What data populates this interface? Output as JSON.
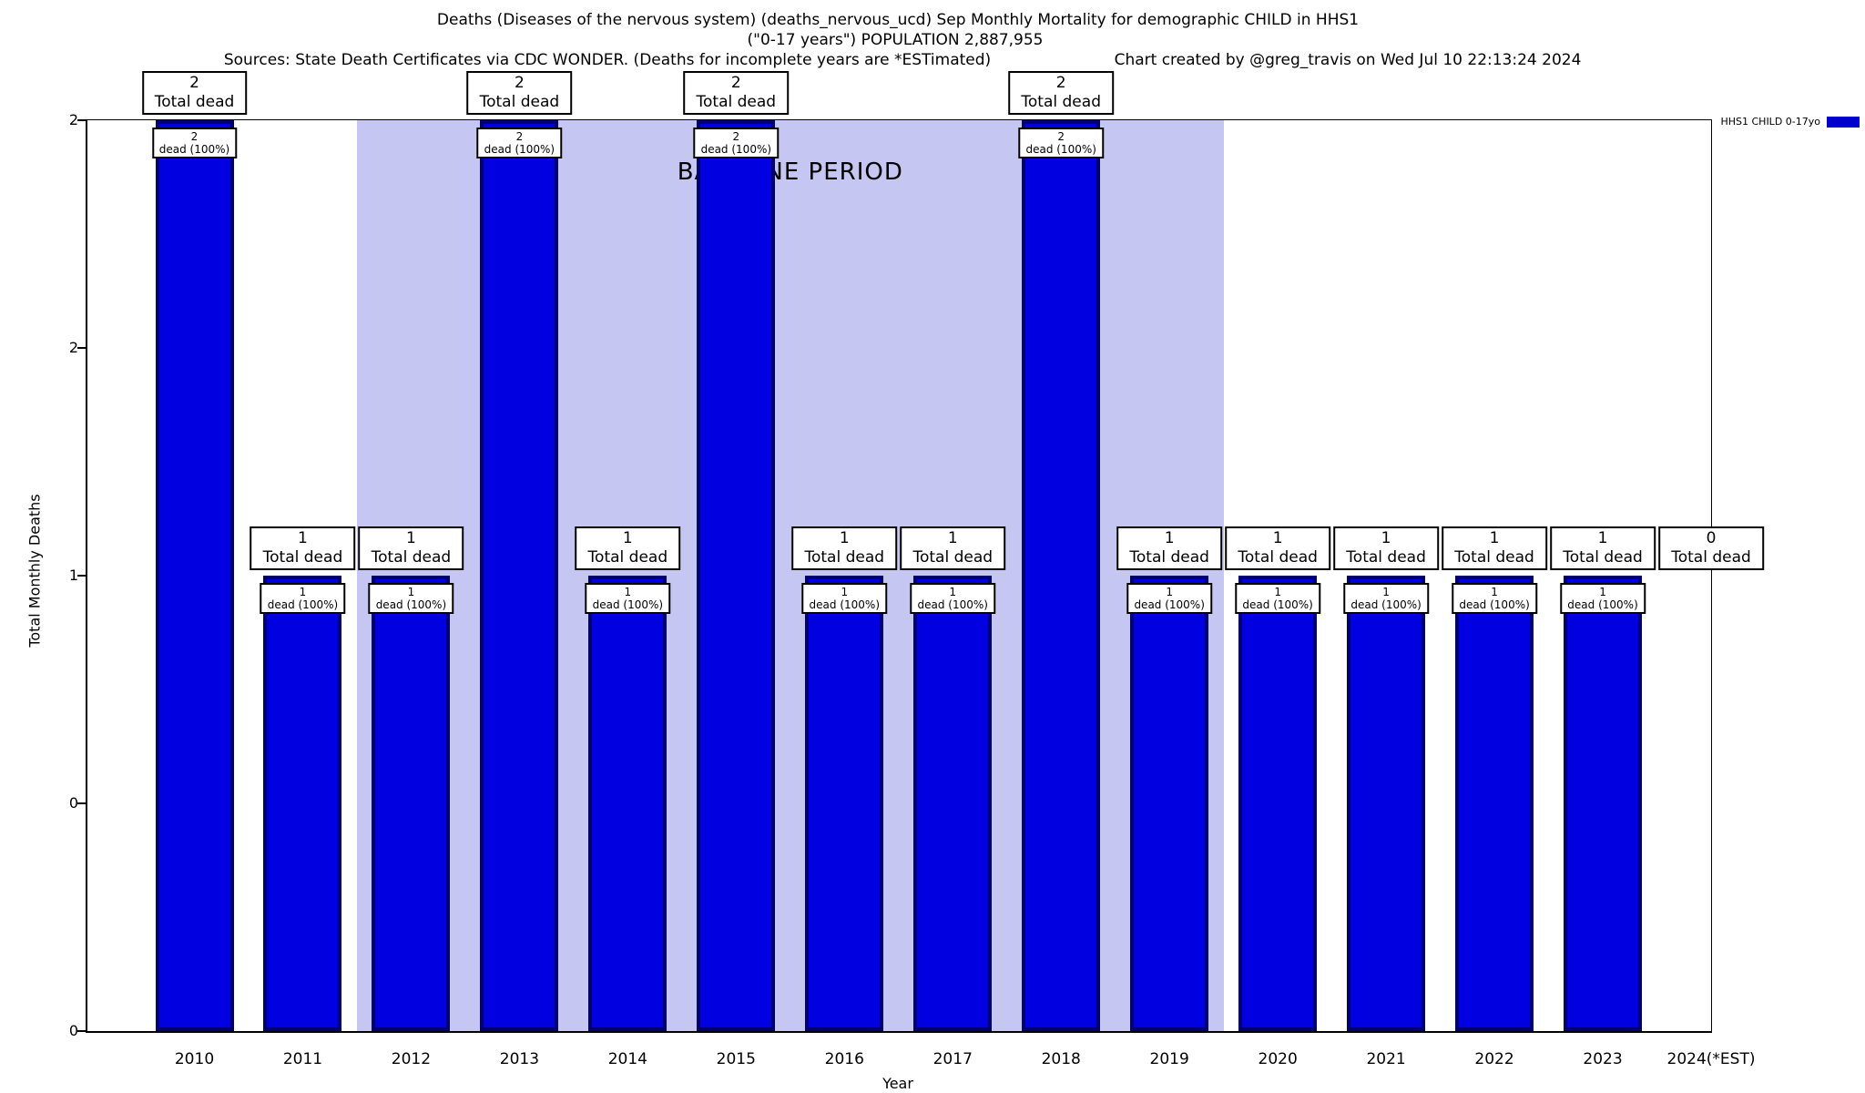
{
  "header": {
    "line1": "Deaths (Diseases of the nervous system) (deaths_nervous_ucd) Sep Monthly Mortality for demographic CHILD in HHS1",
    "line2": "(\"0-17 years\") POPULATION 2,887,955",
    "sources": "Sources: State Death Certificates via CDC WONDER. (Deaths for incomplete years are *ESTimated)",
    "credit": "Chart created by @greg_travis on Wed Jul 10 22:13:24 2024"
  },
  "colors": {
    "bar_fill": "#0000e0",
    "bar_border": "#00006e",
    "band": "#c6c6f2",
    "legend_swatch": "#0000cc"
  },
  "chart_data": {
    "type": "bar",
    "categories": [
      "2010",
      "2011",
      "2012",
      "2013",
      "2014",
      "2015",
      "2016",
      "2017",
      "2018",
      "2019",
      "2020",
      "2021",
      "2022",
      "2023",
      "2024(*EST)"
    ],
    "values": [
      2,
      1,
      1,
      2,
      1,
      2,
      1,
      1,
      2,
      1,
      1,
      1,
      1,
      1,
      0
    ],
    "total_label": "Total dead",
    "pct_label": "dead (100%)",
    "ylim": [
      0,
      2
    ],
    "yticks": [
      {
        "value": 0,
        "label": "0"
      },
      {
        "value": 0.5,
        "label": "0"
      },
      {
        "value": 1,
        "label": "1"
      },
      {
        "value": 1.5,
        "label": "2"
      },
      {
        "value": 2,
        "label": "2"
      }
    ],
    "xlabel": "Year",
    "ylabel": "Total Monthly Deaths",
    "grid": false,
    "legend_position": "top-right",
    "legend": [
      {
        "name": "HHS1 CHILD 0-17yo",
        "color": "#0000cc"
      }
    ],
    "baseline": {
      "label": "BASELINE PERIOD",
      "start": "2012",
      "end": "2019"
    }
  }
}
